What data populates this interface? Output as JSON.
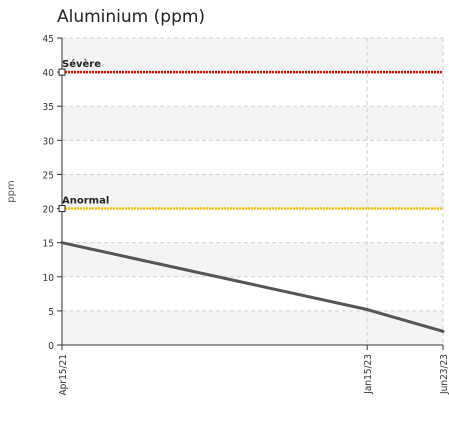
{
  "chart_data": {
    "type": "line",
    "title": "Aluminium (ppm)",
    "ylabel": "ppm",
    "xlabel": "",
    "ylim": [
      0,
      45
    ],
    "yticks": [
      0,
      5,
      10,
      15,
      20,
      25,
      30,
      35,
      40,
      45
    ],
    "x": [
      "Apr15/21",
      "Jan15/23",
      "Jun23/23"
    ],
    "x_dates": [
      "2021-04-15",
      "2023-01-15",
      "2023-06-23"
    ],
    "series": [
      {
        "values": [
          15,
          5.2,
          2
        ],
        "color": "#555555"
      }
    ],
    "thresholds": [
      {
        "label": "Sévère",
        "value": 40,
        "color": "#ff0000"
      },
      {
        "label": "Anormal",
        "value": 20,
        "color": "#f5c400"
      }
    ],
    "grid": true
  }
}
